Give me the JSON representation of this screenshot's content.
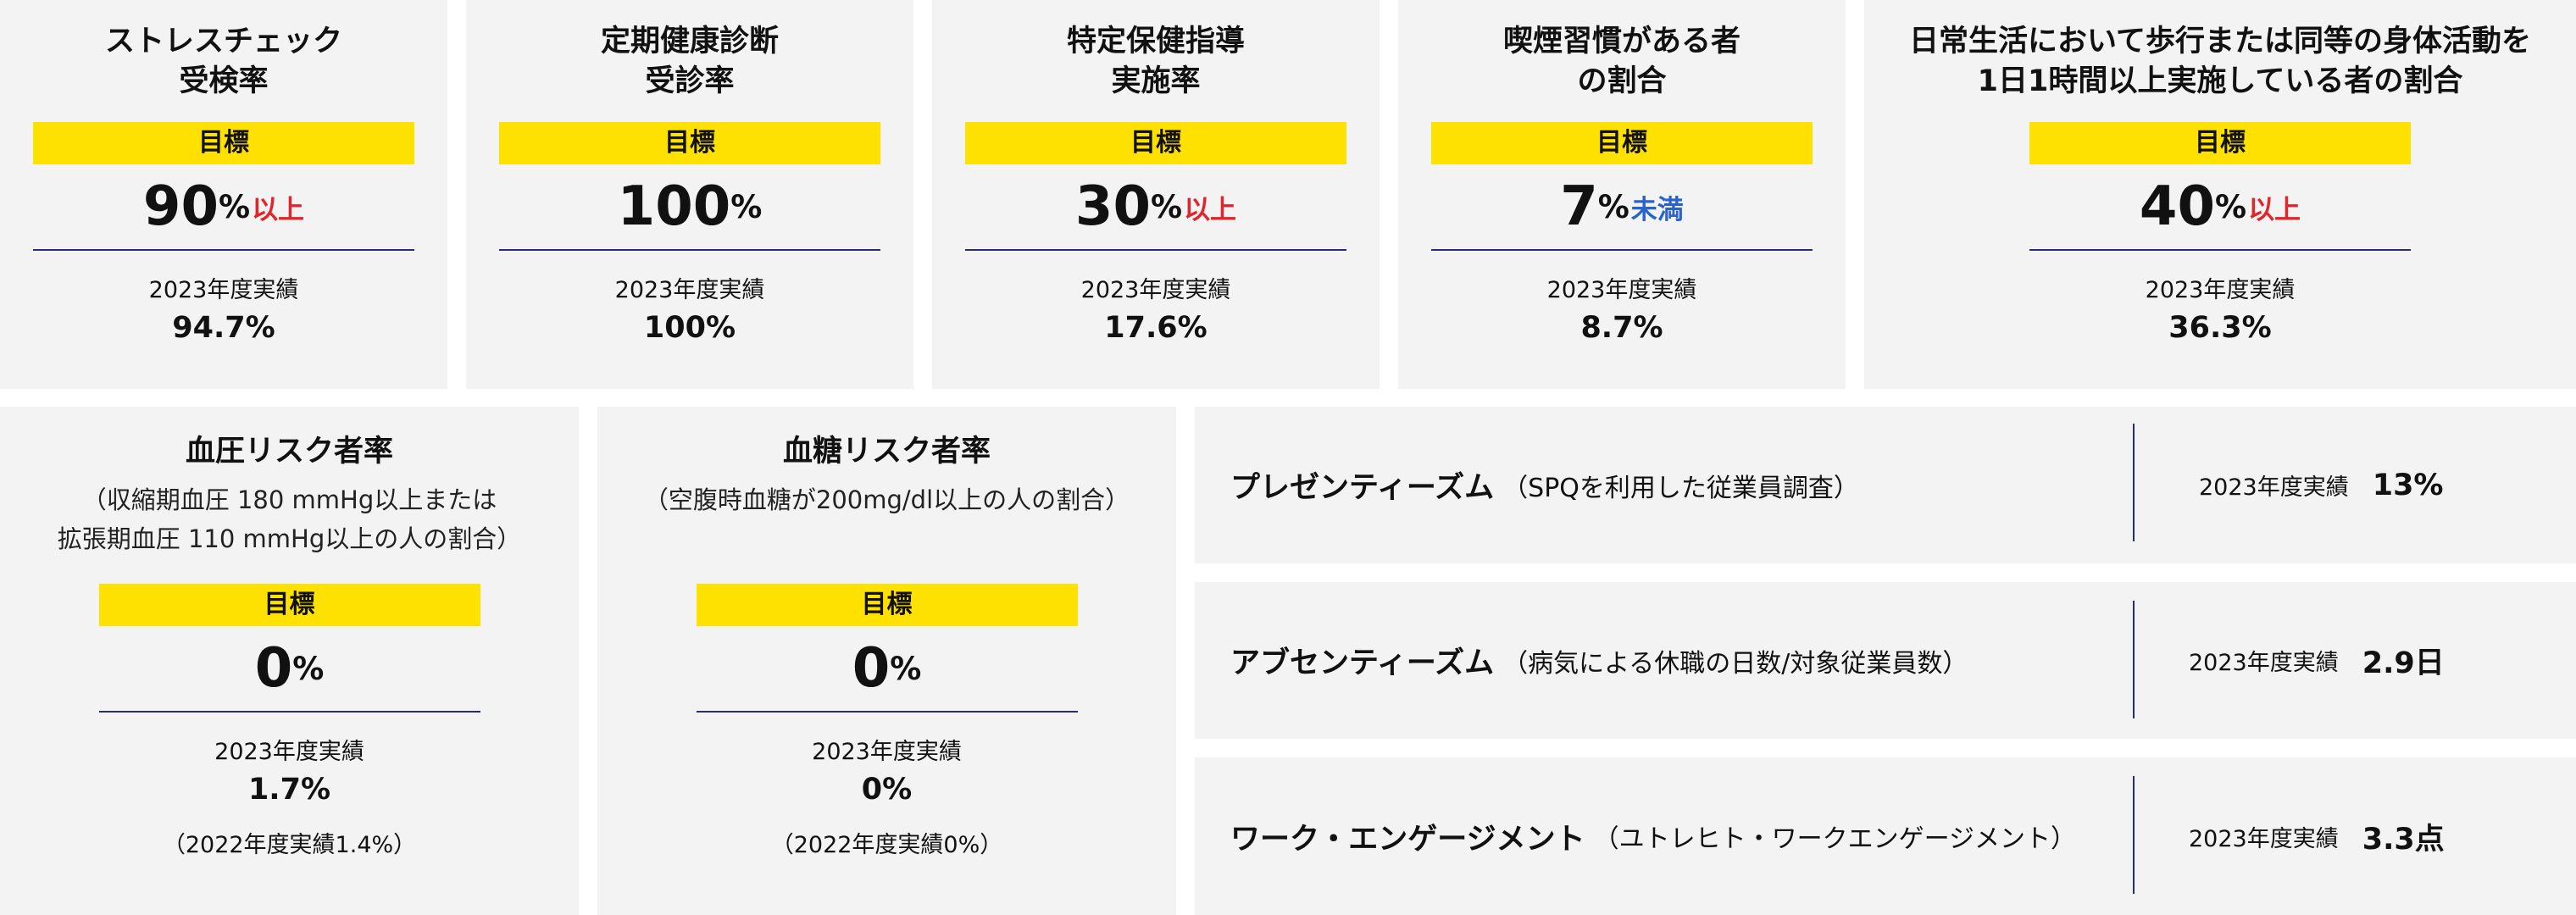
{
  "colors": {
    "accent_yellow": "#ffe100",
    "qualifier_red": "#e0262b",
    "qualifier_blue": "#2a63c9",
    "divider_navy": "#2a2a7a",
    "card_bg": "#f3f3f3"
  },
  "labels": {
    "goal": "目標",
    "actual": "2023年度実績",
    "percent": "%"
  },
  "top_cards": [
    {
      "title": "ストレスチェック\n受検率",
      "target": "90",
      "qualifier": "以上",
      "actual": "94.7%"
    },
    {
      "title": "定期健康診断\n受診率",
      "target": "100",
      "qualifier": "",
      "actual": "100%"
    },
    {
      "title": "特定保健指導\n実施率",
      "target": "30",
      "qualifier": "以上",
      "actual": "17.6%"
    },
    {
      "title": "喫煙習慣がある者\nの割合",
      "target": "7",
      "qualifier": "未満",
      "actual": "8.7%"
    },
    {
      "title": "日常生活において歩行または同等の身体活動を\n1日1時間以上実施している者の割合",
      "target": "40",
      "qualifier": "以上",
      "actual": "36.3%"
    }
  ],
  "bottom_cards": [
    {
      "title": "血圧リスク者率",
      "subtitle": "（収縮期血圧 180 mmHg以上または\n拡張期血圧 110 mmHg以上の人の割合）",
      "target": "0",
      "actual": "1.7%",
      "previous": "（2022年度実績1.4%）"
    },
    {
      "title": "血糖リスク者率",
      "subtitle": "（空腹時血糖が200mg/dl以上の人の割合）",
      "target": "0",
      "actual": "0%",
      "previous": "（2022年度実績0%）"
    }
  ],
  "wide_rows": [
    {
      "name": "プレゼンティーズム",
      "note": "（SPQを利用した従業員調査）",
      "actual": "13%"
    },
    {
      "name": "アブセンティーズム",
      "note": "（病気による休職の日数/対象従業員数）",
      "actual": "2.9日"
    },
    {
      "name": "ワーク・エンゲージメント",
      "note": "（ユトレヒト・ワークエンゲージメント）",
      "actual": "3.3点"
    }
  ]
}
